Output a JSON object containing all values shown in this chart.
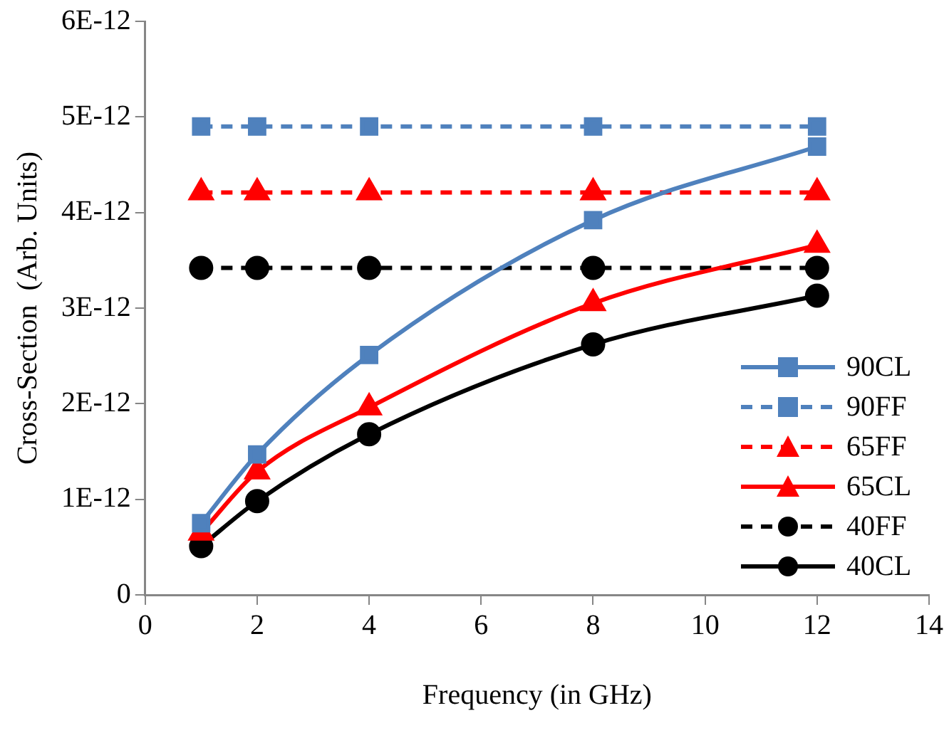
{
  "chart_data": {
    "type": "line",
    "xlabel": "Frequency (in GHz)",
    "ylabel": "Cross-Section  (Arb. Units)",
    "xlim": [
      0,
      14
    ],
    "xticks": [
      0,
      2,
      4,
      6,
      8,
      10,
      12,
      14
    ],
    "ylim": [
      0,
      6e-12
    ],
    "yticks": [
      0,
      {
        "value": 1e-12,
        "label": "1E-12"
      },
      {
        "value": 2e-12,
        "label": "2E-12"
      },
      {
        "value": 3e-12,
        "label": "3E-12"
      },
      {
        "value": 4e-12,
        "label": "4E-12"
      },
      {
        "value": 5e-12,
        "label": "5E-12"
      },
      {
        "value": 6e-12,
        "label": "6E-12"
      }
    ],
    "grid": false,
    "legend": "bottom right",
    "series": [
      {
        "name": "90CL",
        "color": "#4f81bd",
        "line_style": "solid",
        "marker": "square",
        "x": [
          1,
          2,
          4,
          8,
          12
        ],
        "values": [
          7.5e-13,
          1.47e-12,
          2.51e-12,
          3.92e-12,
          4.69e-12
        ]
      },
      {
        "name": "90FF",
        "color": "#4f81bd",
        "line_style": "dashed",
        "marker": "square",
        "x": [
          1,
          2,
          4,
          8,
          12
        ],
        "values": [
          4.9e-12,
          4.9e-12,
          4.9e-12,
          4.9e-12,
          4.9e-12
        ]
      },
      {
        "name": "65FF",
        "color": "#ff0000",
        "line_style": "dashed",
        "marker": "triangle",
        "x": [
          1,
          2,
          4,
          8,
          12
        ],
        "values": [
          4.21e-12,
          4.21e-12,
          4.21e-12,
          4.21e-12,
          4.21e-12
        ]
      },
      {
        "name": "65CL",
        "color": "#ff0000",
        "line_style": "solid",
        "marker": "triangle",
        "x": [
          1,
          2,
          4,
          8,
          12
        ],
        "values": [
          6.5e-13,
          1.29e-12,
          1.96e-12,
          3.05e-12,
          3.66e-12
        ]
      },
      {
        "name": "40FF",
        "color": "#000000",
        "line_style": "dashed",
        "marker": "circle",
        "x": [
          1,
          2,
          4,
          8,
          12
        ],
        "values": [
          3.42e-12,
          3.42e-12,
          3.42e-12,
          3.42e-12,
          3.42e-12
        ]
      },
      {
        "name": "40CL",
        "color": "#000000",
        "line_style": "solid",
        "marker": "circle",
        "x": [
          1,
          2,
          4,
          8,
          12
        ],
        "values": [
          5.1e-13,
          9.8e-13,
          1.68e-12,
          2.62e-12,
          3.13e-12
        ]
      }
    ]
  }
}
